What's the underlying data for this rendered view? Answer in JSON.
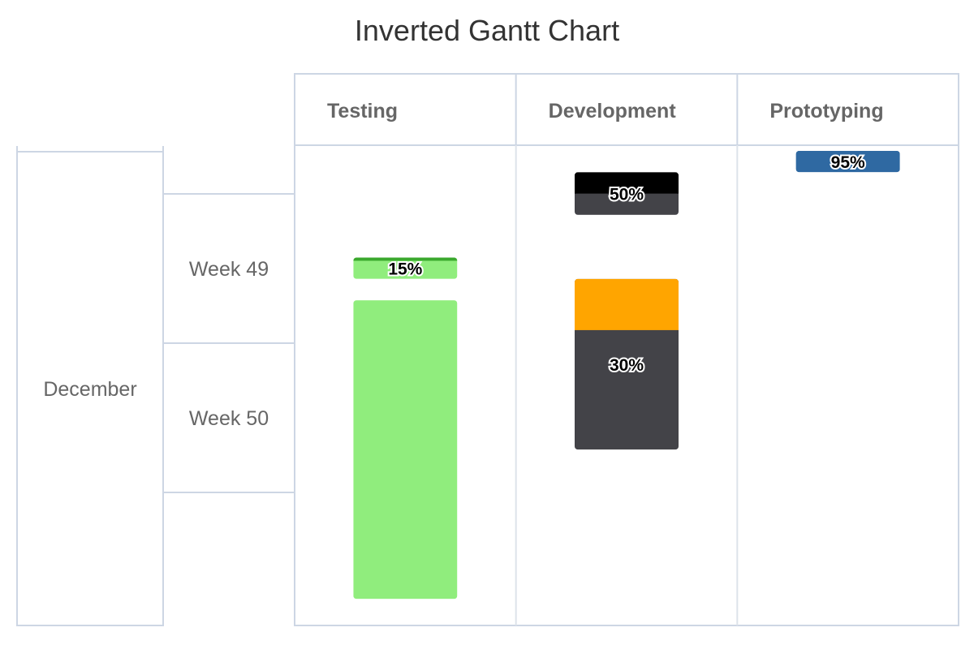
{
  "chart_data": {
    "type": "gantt",
    "title": "Inverted Gantt Chart",
    "categories": [
      "Testing",
      "Development",
      "Prototyping"
    ],
    "time_axis": {
      "month": "December",
      "weeks": [
        "Week 49",
        "Week 50"
      ]
    },
    "tasks": [
      {
        "category": "Development",
        "start": "2023-12-02",
        "end": "2023-12-04",
        "completed": 0.5,
        "completed_label": "50%",
        "color": "#434348",
        "completed_color": "#000000"
      },
      {
        "category": "Development",
        "start": "2023-12-07",
        "end": "2023-12-15",
        "completed": 0.3,
        "completed_label": "30%",
        "color": "#434348",
        "completed_color": "#ffa500"
      },
      {
        "category": "Testing",
        "start": "2023-12-06",
        "end": "2023-12-07",
        "completed": 0.15,
        "completed_label": "15%",
        "color": "#90ed7d",
        "completed_color": "#3aa82d"
      },
      {
        "category": "Testing",
        "start": "2023-12-08",
        "end": "2023-12-22",
        "completed": null,
        "completed_label": "",
        "color": "#90ed7d",
        "completed_color": ""
      },
      {
        "category": "Prototyping",
        "start": "2023-12-01",
        "end": "2023-12-02",
        "completed": 0.95,
        "completed_label": "95%",
        "color": "#2f69a2",
        "completed_color": "#2f69a2"
      }
    ],
    "grid": true,
    "legend": "none"
  }
}
